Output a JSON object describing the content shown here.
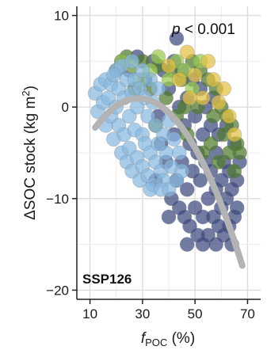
{
  "chart_data": {
    "type": "scatter",
    "title": "",
    "panel_label": "SSP126",
    "annotation": {
      "p_symbol": "p",
      "p_rest": " < 0.001"
    },
    "xlabel": {
      "main": "f",
      "sub": "POC",
      "rest": " (%)"
    },
    "ylabel": {
      "pre": "ΔSOC stock (kg m",
      "sup": "2",
      "post": ")"
    },
    "xlim": [
      5,
      75
    ],
    "ylim": [
      -21,
      11
    ],
    "xticks": [
      10,
      30,
      50,
      70
    ],
    "yticks": [
      10,
      0,
      -10,
      -20
    ],
    "ytick_labels": [
      "10",
      "0",
      "−10",
      "−20"
    ],
    "grid": true,
    "colors": {
      "blue": "#88b8e0",
      "navy": "#3c4a7e",
      "green": "#4f7a2c",
      "lime": "#9acb4f",
      "yellow": "#e3c043",
      "trend": "#b3b3b3",
      "outline": "#7a7a7a"
    },
    "point_groups": [
      {
        "color": "blue",
        "points": [
          [
            12,
            1.5
          ],
          [
            13,
            -0.5
          ],
          [
            14,
            2.5
          ],
          [
            15,
            0.5
          ],
          [
            16,
            -2
          ],
          [
            16,
            3
          ],
          [
            17,
            1
          ],
          [
            18,
            -1
          ],
          [
            18,
            2.5
          ],
          [
            19,
            -3.5
          ],
          [
            20,
            0
          ],
          [
            20,
            4
          ],
          [
            21,
            -2
          ],
          [
            21,
            2
          ],
          [
            22,
            -5
          ],
          [
            23,
            1
          ],
          [
            23,
            -3
          ],
          [
            24,
            3
          ],
          [
            24,
            -6
          ],
          [
            25,
            -1
          ],
          [
            25,
            -4.5
          ],
          [
            26,
            1.5
          ],
          [
            26,
            -7
          ],
          [
            27,
            -2.5
          ],
          [
            27,
            3
          ],
          [
            28,
            -5.5
          ],
          [
            28,
            0
          ],
          [
            29,
            -8
          ],
          [
            29,
            2
          ],
          [
            30,
            -3
          ],
          [
            30,
            -6.5
          ],
          [
            31,
            1
          ],
          [
            31,
            -4
          ],
          [
            32,
            -7.5
          ],
          [
            32,
            -1
          ],
          [
            33,
            3
          ],
          [
            33,
            -5
          ],
          [
            34,
            -8.5
          ],
          [
            34,
            0.5
          ],
          [
            35,
            -2
          ],
          [
            35,
            -6
          ],
          [
            36,
            -4
          ],
          [
            36,
            2
          ],
          [
            37,
            -7
          ],
          [
            38,
            -3
          ],
          [
            38,
            -8
          ],
          [
            39,
            -5
          ],
          [
            40,
            -9
          ],
          [
            40,
            -1.5
          ],
          [
            41,
            -6.5
          ],
          [
            42,
            -3.5
          ],
          [
            43,
            -8
          ],
          [
            44,
            -5
          ],
          [
            45,
            -7
          ],
          [
            22,
            4.5
          ],
          [
            26,
            5
          ],
          [
            30,
            4
          ],
          [
            19,
            3.5
          ],
          [
            33,
            -9
          ],
          [
            37,
            -9
          ]
        ]
      },
      {
        "color": "navy",
        "points": [
          [
            22,
            5
          ],
          [
            25,
            4
          ],
          [
            28,
            5.5
          ],
          [
            31,
            3
          ],
          [
            34,
            5
          ],
          [
            36,
            -1
          ],
          [
            38,
            4
          ],
          [
            39,
            -6
          ],
          [
            40,
            2
          ],
          [
            41,
            -10
          ],
          [
            42,
            5
          ],
          [
            42,
            -3
          ],
          [
            43,
            -8
          ],
          [
            44,
            0
          ],
          [
            44,
            -11
          ],
          [
            45,
            4
          ],
          [
            45,
            -6
          ],
          [
            46,
            -2
          ],
          [
            46,
            -12
          ],
          [
            47,
            1
          ],
          [
            47,
            -9
          ],
          [
            48,
            -4
          ],
          [
            48,
            -13
          ],
          [
            49,
            3
          ],
          [
            49,
            -7
          ],
          [
            50,
            -1
          ],
          [
            50,
            -11
          ],
          [
            51,
            -5
          ],
          [
            51,
            -14
          ],
          [
            52,
            2
          ],
          [
            52,
            -8
          ],
          [
            53,
            -3
          ],
          [
            53,
            -12
          ],
          [
            54,
            -6
          ],
          [
            54,
            0
          ],
          [
            55,
            -10
          ],
          [
            55,
            -14
          ],
          [
            56,
            -2
          ],
          [
            56,
            -7
          ],
          [
            57,
            -12
          ],
          [
            57,
            1
          ],
          [
            58,
            -5
          ],
          [
            58,
            -9
          ],
          [
            59,
            -13
          ],
          [
            59,
            -3
          ],
          [
            60,
            -8
          ],
          [
            60,
            -11
          ],
          [
            61,
            -6
          ],
          [
            61,
            -14
          ],
          [
            62,
            -10
          ],
          [
            62,
            -2
          ],
          [
            63,
            -13
          ],
          [
            63,
            -7
          ],
          [
            64,
            -15
          ],
          [
            64,
            -9
          ],
          [
            65,
            -12
          ],
          [
            65,
            -4
          ],
          [
            66,
            -8
          ],
          [
            66,
            -11
          ],
          [
            67,
            -6
          ],
          [
            43,
            7.5
          ],
          [
            37,
            -4
          ],
          [
            35,
            -8
          ],
          [
            47,
            -15
          ],
          [
            53,
            -15
          ],
          [
            58,
            -15
          ],
          [
            40,
            -12
          ]
        ]
      },
      {
        "color": "green",
        "points": [
          [
            20,
            4
          ],
          [
            24,
            5.5
          ],
          [
            27,
            2
          ],
          [
            30,
            5
          ],
          [
            33,
            2
          ],
          [
            36,
            4.5
          ],
          [
            39,
            1
          ],
          [
            41,
            4
          ],
          [
            43,
            -1
          ],
          [
            45,
            3
          ],
          [
            47,
            -3
          ],
          [
            49,
            5
          ],
          [
            51,
            0
          ],
          [
            53,
            -5
          ],
          [
            55,
            3
          ],
          [
            56,
            -4
          ],
          [
            57,
            -1
          ],
          [
            58,
            2
          ],
          [
            59,
            -6
          ],
          [
            60,
            0
          ],
          [
            61,
            -3
          ],
          [
            62,
            -1
          ],
          [
            63,
            -5
          ],
          [
            64,
            -2
          ],
          [
            65,
            -7
          ],
          [
            66,
            -4
          ],
          [
            67,
            -5
          ],
          [
            35,
            -2
          ],
          [
            46,
            0
          ],
          [
            52,
            4
          ]
        ]
      },
      {
        "color": "lime",
        "points": [
          [
            22,
            5
          ],
          [
            26,
            4.5
          ],
          [
            29,
            3
          ],
          [
            33,
            4
          ],
          [
            36,
            5.5
          ],
          [
            40,
            3
          ],
          [
            43,
            5
          ],
          [
            46,
            4
          ],
          [
            49,
            2
          ],
          [
            52,
            5
          ]
        ]
      },
      {
        "color": "yellow",
        "points": [
          [
            40,
            4.5
          ],
          [
            44,
            3
          ],
          [
            47,
            6
          ],
          [
            50,
            3.5
          ],
          [
            53,
            1
          ],
          [
            55,
            5
          ],
          [
            57,
            3
          ],
          [
            59,
            0.5
          ],
          [
            61,
            2
          ],
          [
            63,
            -1
          ],
          [
            65,
            -3
          ],
          [
            48,
            1
          ]
        ]
      }
    ],
    "trend": {
      "a": 0.0117,
      "b": 0.6669,
      "c": -8.56,
      "x_from": 12,
      "x_to": 68
    }
  }
}
